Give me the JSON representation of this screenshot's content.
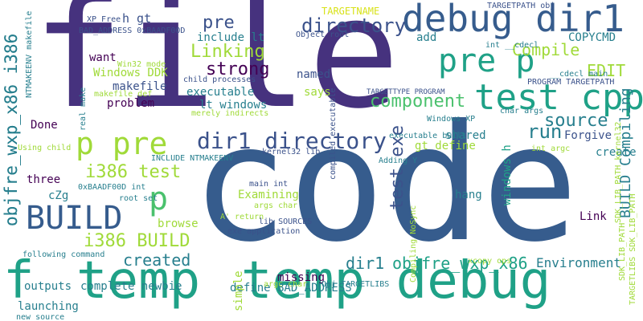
{
  "colors": {
    "purple": "#46327e",
    "indigo": "#3b528b",
    "blue": "#365c8d",
    "teal": "#277f8e",
    "green": "#1fa187",
    "lightgreen": "#4ac16d",
    "lime": "#a0da39",
    "yellow": "#d8e219",
    "dark": "#440154"
  },
  "words": [
    {
      "text": "file"
    },
    {
      "text": "code"
    },
    {
      "text": "debug dir1"
    },
    {
      "text": "temp"
    },
    {
      "text": "temp debug"
    },
    {
      "text": "f"
    },
    {
      "text": "test cpp"
    },
    {
      "text": "pre p"
    },
    {
      "text": "p pre"
    },
    {
      "text": "BUILD"
    },
    {
      "text": "p"
    },
    {
      "text": "dir1 directory"
    },
    {
      "text": "directory"
    },
    {
      "text": "pre"
    },
    {
      "text": "strong"
    },
    {
      "text": "Linking"
    },
    {
      "text": "component"
    },
    {
      "text": "source"
    },
    {
      "text": "run"
    },
    {
      "text": "i386 test"
    },
    {
      "text": "i386 BUILD"
    },
    {
      "text": "created"
    },
    {
      "text": "objfre_wxp_x86 i386"
    },
    {
      "text": "objfre_wxp_x86 i386"
    },
    {
      "text": "test exe"
    },
    {
      "text": "BUILD Compiling"
    },
    {
      "text": "Compile"
    },
    {
      "text": "EDIT"
    },
    {
      "text": "objfre_wxp_x86"
    },
    {
      "text": "dir1"
    },
    {
      "text": "Environment"
    },
    {
      "text": "complete newbie"
    },
    {
      "text": "define BAD_ADDRESS"
    },
    {
      "text": "outputs"
    },
    {
      "text": "launching"
    },
    {
      "text": "TARGETNAME"
    },
    {
      "text": "include lt"
    },
    {
      "text": "h gt"
    },
    {
      "text": "Windows DDK"
    },
    {
      "text": "makefile"
    },
    {
      "text": "executable"
    },
    {
      "text": "lt windows"
    },
    {
      "text": "problem"
    },
    {
      "text": "want"
    },
    {
      "text": "Done"
    },
    {
      "text": "three"
    },
    {
      "text": "cZg"
    },
    {
      "text": "browse"
    },
    {
      "text": "Examining"
    },
    {
      "text": "missing"
    },
    {
      "text": "simple"
    },
    {
      "text": "hang"
    },
    {
      "text": "shared"
    },
    {
      "text": "Forgive"
    },
    {
      "text": "create"
    },
    {
      "text": "Link"
    },
    {
      "text": "gt define"
    },
    {
      "text": "add"
    },
    {
      "text": "named"
    },
    {
      "text": "says"
    },
    {
      "text": "COPYCMD"
    },
    {
      "text": "windows h"
    },
    {
      "text": "XP Free"
    },
    {
      "text": "BAD_ADDRESS 0xBAADF00D"
    },
    {
      "text": "Object root"
    },
    {
      "text": "TARGETPATH obj"
    },
    {
      "text": "int __cdecl"
    },
    {
      "text": "Win32 mode"
    },
    {
      "text": "child processes"
    },
    {
      "text": "makefile def"
    },
    {
      "text": "merely indirects"
    },
    {
      "text": "TARGETTYPE PROGRAM"
    },
    {
      "text": "__cdecl main"
    },
    {
      "text": "PROGRAM TARGETPATH"
    },
    {
      "text": "char args"
    },
    {
      "text": "Windows XP"
    },
    {
      "text": "executable built"
    },
    {
      "text": "int argc"
    },
    {
      "text": "kernel32 lib"
    },
    {
      "text": "Using child"
    },
    {
      "text": "INCLUDE NTMAKEENV"
    },
    {
      "text": "Adding Y"
    },
    {
      "text": "main int"
    },
    {
      "text": "0xBAADF00D int"
    },
    {
      "text": "root set"
    },
    {
      "text": "args char"
    },
    {
      "text": "A' return"
    },
    {
      "text": "lib SOURCES"
    },
    {
      "text": "exe application"
    },
    {
      "text": "following command"
    },
    {
      "text": "argc char"
    },
    {
      "text": "Obj TARGETLIBS"
    },
    {
      "text": "xcopy ops"
    },
    {
      "text": "new source"
    },
    {
      "text": "NTMAKEENV makefile"
    },
    {
      "text": "real make"
    },
    {
      "text": "compiled executable"
    },
    {
      "text": "Compiling NoSync"
    },
    {
      "text": "SDK_LIB_PATH kernel32"
    },
    {
      "text": "SDK_LIB_PATH"
    },
    {
      "text": "TARGETLIBS SDK_LIB_PATH"
    }
  ]
}
